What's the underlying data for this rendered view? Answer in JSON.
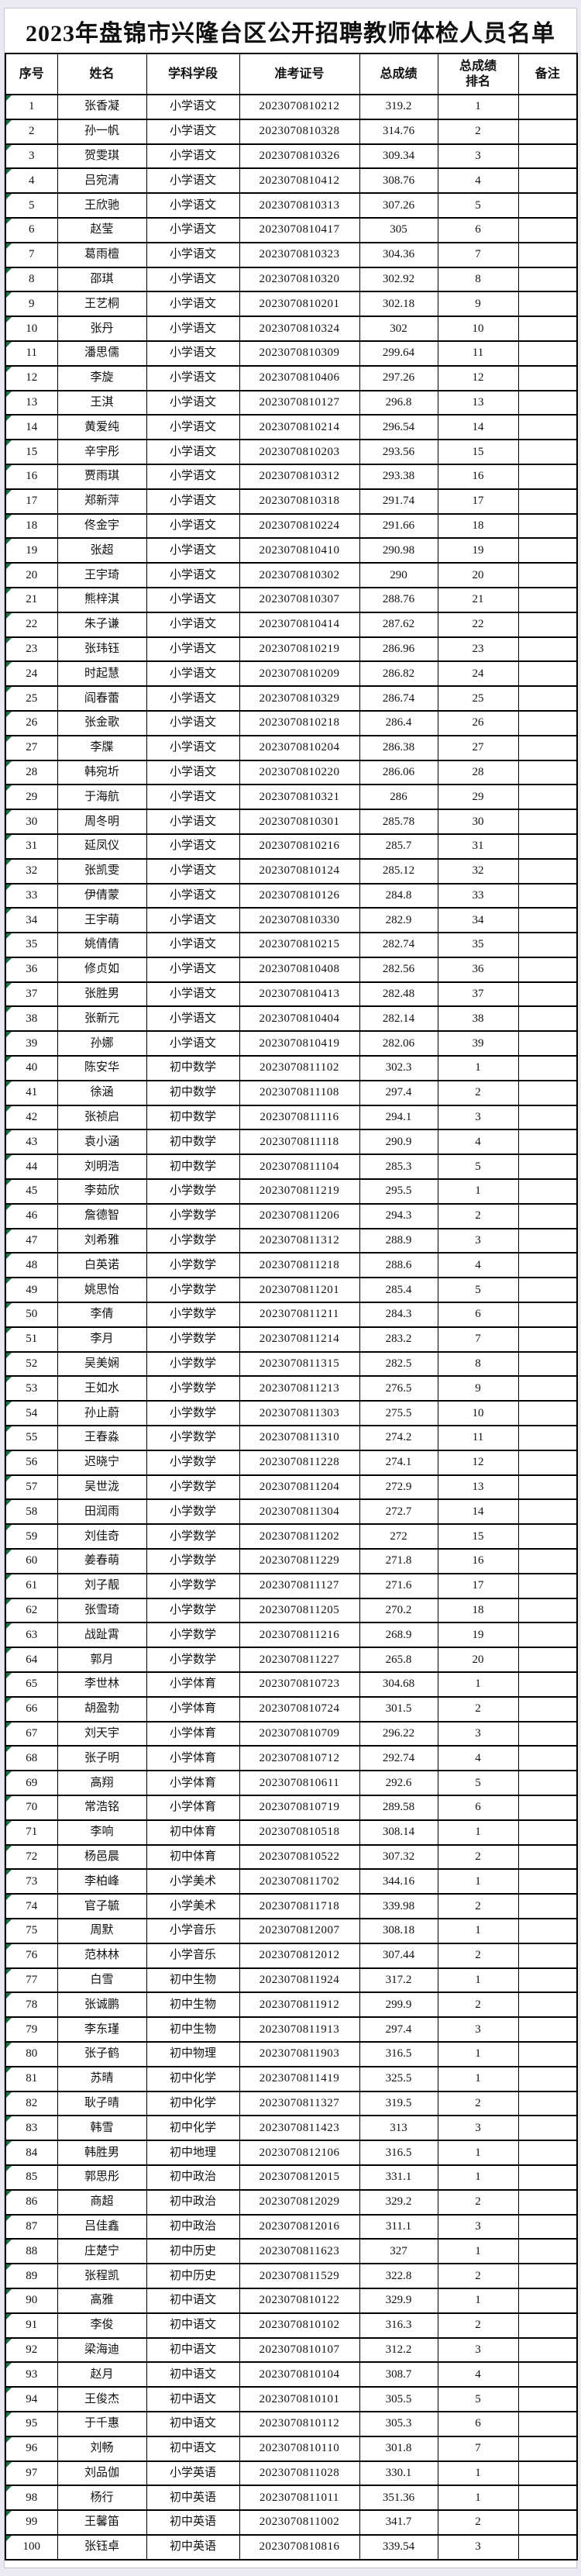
{
  "theme": {
    "page_background": "#ebeaf1",
    "sheet_background": "#ffffff",
    "grid_color": "#000000",
    "marker_color": "#1e7145",
    "text_color": "#111111"
  },
  "title": "2023年盘锦市兴隆台区公开招聘教师体检人员名单",
  "table": {
    "columns": [
      "序号",
      "姓名",
      "学科学段",
      "准考证号",
      "总成绩",
      "总成绩\n排名",
      "备注"
    ],
    "rows": [
      [
        "1",
        "张香凝",
        "小学语文",
        "2023070810212",
        "319.2",
        "1",
        ""
      ],
      [
        "2",
        "孙一帆",
        "小学语文",
        "2023070810328",
        "314.76",
        "2",
        ""
      ],
      [
        "3",
        "贺雯琪",
        "小学语文",
        "2023070810326",
        "309.34",
        "3",
        ""
      ],
      [
        "4",
        "吕宛清",
        "小学语文",
        "2023070810412",
        "308.76",
        "4",
        ""
      ],
      [
        "5",
        "王欣驰",
        "小学语文",
        "2023070810313",
        "307.26",
        "5",
        ""
      ],
      [
        "6",
        "赵莹",
        "小学语文",
        "2023070810417",
        "305",
        "6",
        ""
      ],
      [
        "7",
        "葛雨檀",
        "小学语文",
        "2023070810323",
        "304.36",
        "7",
        ""
      ],
      [
        "8",
        "邵琪",
        "小学语文",
        "2023070810320",
        "302.92",
        "8",
        ""
      ],
      [
        "9",
        "王艺桐",
        "小学语文",
        "2023070810201",
        "302.18",
        "9",
        ""
      ],
      [
        "10",
        "张丹",
        "小学语文",
        "2023070810324",
        "302",
        "10",
        ""
      ],
      [
        "11",
        "潘思儒",
        "小学语文",
        "2023070810309",
        "299.64",
        "11",
        ""
      ],
      [
        "12",
        "李旋",
        "小学语文",
        "2023070810406",
        "297.26",
        "12",
        ""
      ],
      [
        "13",
        "王淇",
        "小学语文",
        "2023070810127",
        "296.8",
        "13",
        ""
      ],
      [
        "14",
        "黄爱纯",
        "小学语文",
        "2023070810214",
        "296.54",
        "14",
        ""
      ],
      [
        "15",
        "辛宇彤",
        "小学语文",
        "2023070810203",
        "293.56",
        "15",
        ""
      ],
      [
        "16",
        "贾雨琪",
        "小学语文",
        "2023070810312",
        "293.38",
        "16",
        ""
      ],
      [
        "17",
        "郑新萍",
        "小学语文",
        "2023070810318",
        "291.74",
        "17",
        ""
      ],
      [
        "18",
        "佟金宇",
        "小学语文",
        "2023070810224",
        "291.66",
        "18",
        ""
      ],
      [
        "19",
        "张超",
        "小学语文",
        "2023070810410",
        "290.98",
        "19",
        ""
      ],
      [
        "20",
        "王宇琦",
        "小学语文",
        "2023070810302",
        "290",
        "20",
        ""
      ],
      [
        "21",
        "熊梓淇",
        "小学语文",
        "2023070810307",
        "288.76",
        "21",
        ""
      ],
      [
        "22",
        "朱子谦",
        "小学语文",
        "2023070810414",
        "287.62",
        "22",
        ""
      ],
      [
        "23",
        "张玮钰",
        "小学语文",
        "2023070810219",
        "286.96",
        "23",
        ""
      ],
      [
        "24",
        "时起慧",
        "小学语文",
        "2023070810209",
        "286.82",
        "24",
        ""
      ],
      [
        "25",
        "阎春蕾",
        "小学语文",
        "2023070810329",
        "286.74",
        "25",
        ""
      ],
      [
        "26",
        "张金歌",
        "小学语文",
        "2023070810218",
        "286.4",
        "26",
        ""
      ],
      [
        "27",
        "李牒",
        "小学语文",
        "2023070810204",
        "286.38",
        "27",
        ""
      ],
      [
        "28",
        "韩宛圻",
        "小学语文",
        "2023070810220",
        "286.06",
        "28",
        ""
      ],
      [
        "29",
        "于海航",
        "小学语文",
        "2023070810321",
        "286",
        "29",
        ""
      ],
      [
        "30",
        "周冬明",
        "小学语文",
        "2023070810301",
        "285.78",
        "30",
        ""
      ],
      [
        "31",
        "延凤仪",
        "小学语文",
        "2023070810216",
        "285.7",
        "31",
        ""
      ],
      [
        "32",
        "张凯雯",
        "小学语文",
        "2023070810124",
        "285.12",
        "32",
        ""
      ],
      [
        "33",
        "伊倩蒙",
        "小学语文",
        "2023070810126",
        "284.8",
        "33",
        ""
      ],
      [
        "34",
        "王宇萌",
        "小学语文",
        "2023070810330",
        "282.9",
        "34",
        ""
      ],
      [
        "35",
        "姚倩倩",
        "小学语文",
        "2023070810215",
        "282.74",
        "35",
        ""
      ],
      [
        "36",
        "修贞如",
        "小学语文",
        "2023070810408",
        "282.56",
        "36",
        ""
      ],
      [
        "37",
        "张胜男",
        "小学语文",
        "2023070810413",
        "282.48",
        "37",
        ""
      ],
      [
        "38",
        "张新元",
        "小学语文",
        "2023070810404",
        "282.14",
        "38",
        ""
      ],
      [
        "39",
        "孙娜",
        "小学语文",
        "2023070810419",
        "282.06",
        "39",
        ""
      ],
      [
        "40",
        "陈安华",
        "初中数学",
        "2023070811102",
        "302.3",
        "1",
        ""
      ],
      [
        "41",
        "徐涵",
        "初中数学",
        "2023070811108",
        "297.4",
        "2",
        ""
      ],
      [
        "42",
        "张祯启",
        "初中数学",
        "2023070811116",
        "294.1",
        "3",
        ""
      ],
      [
        "43",
        "袁小涵",
        "初中数学",
        "2023070811118",
        "290.9",
        "4",
        ""
      ],
      [
        "44",
        "刘明浩",
        "初中数学",
        "2023070811104",
        "285.3",
        "5",
        ""
      ],
      [
        "45",
        "李茹欣",
        "小学数学",
        "2023070811219",
        "295.5",
        "1",
        ""
      ],
      [
        "46",
        "詹德智",
        "小学数学",
        "2023070811206",
        "294.3",
        "2",
        ""
      ],
      [
        "47",
        "刘希雅",
        "小学数学",
        "2023070811312",
        "288.9",
        "3",
        ""
      ],
      [
        "48",
        "白英诺",
        "小学数学",
        "2023070811218",
        "288.6",
        "4",
        ""
      ],
      [
        "49",
        "姚思怡",
        "小学数学",
        "2023070811201",
        "285.4",
        "5",
        ""
      ],
      [
        "50",
        "李倩",
        "小学数学",
        "2023070811211",
        "284.3",
        "6",
        ""
      ],
      [
        "51",
        "李月",
        "小学数学",
        "2023070811214",
        "283.2",
        "7",
        ""
      ],
      [
        "52",
        "吴美娴",
        "小学数学",
        "2023070811315",
        "282.5",
        "8",
        ""
      ],
      [
        "53",
        "王如水",
        "小学数学",
        "2023070811213",
        "276.5",
        "9",
        ""
      ],
      [
        "54",
        "孙止蔚",
        "小学数学",
        "2023070811303",
        "275.5",
        "10",
        ""
      ],
      [
        "55",
        "王春淼",
        "小学数学",
        "2023070811310",
        "274.2",
        "11",
        ""
      ],
      [
        "56",
        "迟晓宁",
        "小学数学",
        "2023070811228",
        "274.1",
        "12",
        ""
      ],
      [
        "57",
        "吴世泷",
        "小学数学",
        "2023070811204",
        "272.9",
        "13",
        ""
      ],
      [
        "58",
        "田润雨",
        "小学数学",
        "2023070811304",
        "272.7",
        "14",
        ""
      ],
      [
        "59",
        "刘佳奇",
        "小学数学",
        "2023070811202",
        "272",
        "15",
        ""
      ],
      [
        "60",
        "姜春萌",
        "小学数学",
        "2023070811229",
        "271.8",
        "16",
        ""
      ],
      [
        "61",
        "刘子靓",
        "小学数学",
        "2023070811127",
        "271.6",
        "17",
        ""
      ],
      [
        "62",
        "张雪琦",
        "小学数学",
        "2023070811205",
        "270.2",
        "18",
        ""
      ],
      [
        "63",
        "战趾霄",
        "小学数学",
        "2023070811216",
        "268.9",
        "19",
        ""
      ],
      [
        "64",
        "郭月",
        "小学数学",
        "2023070811227",
        "265.8",
        "20",
        ""
      ],
      [
        "65",
        "李世林",
        "小学体育",
        "2023070810723",
        "304.68",
        "1",
        ""
      ],
      [
        "66",
        "胡盈勃",
        "小学体育",
        "2023070810724",
        "301.5",
        "2",
        ""
      ],
      [
        "67",
        "刘天宇",
        "小学体育",
        "2023070810709",
        "296.22",
        "3",
        ""
      ],
      [
        "68",
        "张子明",
        "小学体育",
        "2023070810712",
        "292.74",
        "4",
        ""
      ],
      [
        "69",
        "高翔",
        "小学体育",
        "2023070810611",
        "292.6",
        "5",
        ""
      ],
      [
        "70",
        "常浩铭",
        "小学体育",
        "2023070810719",
        "289.58",
        "6",
        ""
      ],
      [
        "71",
        "李响",
        "初中体育",
        "2023070810518",
        "308.14",
        "1",
        ""
      ],
      [
        "72",
        "杨邑晨",
        "初中体育",
        "2023070810522",
        "307.32",
        "2",
        ""
      ],
      [
        "73",
        "李柏峰",
        "小学美术",
        "2023070811702",
        "344.16",
        "1",
        ""
      ],
      [
        "74",
        "官子毓",
        "小学美术",
        "2023070811718",
        "339.98",
        "2",
        ""
      ],
      [
        "75",
        "周默",
        "小学音乐",
        "2023070812007",
        "308.18",
        "1",
        ""
      ],
      [
        "76",
        "范林林",
        "小学音乐",
        "2023070812012",
        "307.44",
        "2",
        ""
      ],
      [
        "77",
        "白雪",
        "初中生物",
        "2023070811924",
        "317.2",
        "1",
        ""
      ],
      [
        "78",
        "张诚鹏",
        "初中生物",
        "2023070811912",
        "299.9",
        "2",
        ""
      ],
      [
        "79",
        "李东瑾",
        "初中生物",
        "2023070811913",
        "297.4",
        "3",
        ""
      ],
      [
        "80",
        "张子鹤",
        "初中物理",
        "2023070811903",
        "316.5",
        "1",
        ""
      ],
      [
        "81",
        "苏晴",
        "初中化学",
        "2023070811419",
        "325.5",
        "1",
        ""
      ],
      [
        "82",
        "耿子晴",
        "初中化学",
        "2023070811327",
        "319.5",
        "2",
        ""
      ],
      [
        "83",
        "韩雪",
        "初中化学",
        "2023070811423",
        "313",
        "3",
        ""
      ],
      [
        "84",
        "韩胜男",
        "初中地理",
        "2023070812106",
        "316.5",
        "1",
        ""
      ],
      [
        "85",
        "郭思彤",
        "初中政治",
        "2023070812015",
        "331.1",
        "1",
        ""
      ],
      [
        "86",
        "商超",
        "初中政治",
        "2023070812029",
        "329.2",
        "2",
        ""
      ],
      [
        "87",
        "吕佳鑫",
        "初中政治",
        "2023070812016",
        "311.1",
        "3",
        ""
      ],
      [
        "88",
        "庄楚宁",
        "初中历史",
        "2023070811623",
        "327",
        "1",
        ""
      ],
      [
        "89",
        "张程凯",
        "初中历史",
        "2023070811529",
        "322.8",
        "2",
        ""
      ],
      [
        "90",
        "高雅",
        "初中语文",
        "2023070810122",
        "329.9",
        "1",
        ""
      ],
      [
        "91",
        "李俊",
        "初中语文",
        "2023070810102",
        "316.3",
        "2",
        ""
      ],
      [
        "92",
        "梁海迪",
        "初中语文",
        "2023070810107",
        "312.2",
        "3",
        ""
      ],
      [
        "93",
        "赵月",
        "初中语文",
        "2023070810104",
        "308.7",
        "4",
        ""
      ],
      [
        "94",
        "王俊杰",
        "初中语文",
        "2023070810101",
        "305.5",
        "5",
        ""
      ],
      [
        "95",
        "于千惠",
        "初中语文",
        "2023070810112",
        "305.3",
        "6",
        ""
      ],
      [
        "96",
        "刘畅",
        "初中语文",
        "2023070810110",
        "301.8",
        "7",
        ""
      ],
      [
        "97",
        "刘品伽",
        "小学英语",
        "2023070811028",
        "330.1",
        "1",
        ""
      ],
      [
        "98",
        "杨行",
        "初中英语",
        "2023070811011",
        "351.36",
        "1",
        ""
      ],
      [
        "99",
        "王馨笛",
        "初中英语",
        "2023070811002",
        "341.7",
        "2",
        ""
      ],
      [
        "100",
        "张钰卓",
        "初中英语",
        "2023070810816",
        "339.54",
        "3",
        ""
      ]
    ]
  }
}
